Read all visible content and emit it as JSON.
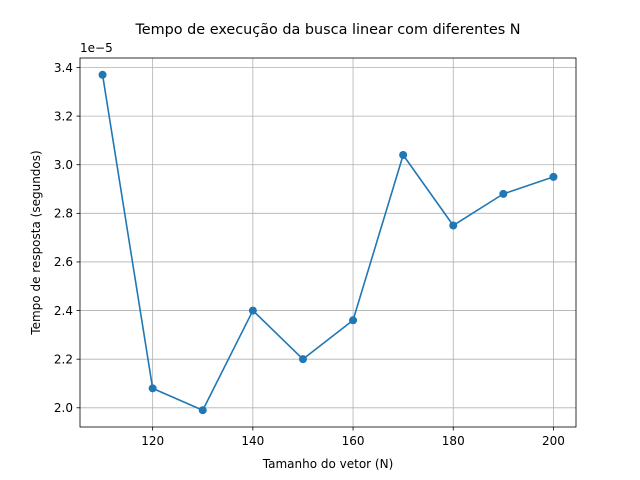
{
  "chart_data": {
    "type": "line",
    "title": "Tempo de execução da busca linear com diferentes N",
    "xlabel": "Tamanho do vetor (N)",
    "ylabel": "Tempo de resposta (segundos)",
    "offset_label": "1e−5",
    "x": [
      110,
      120,
      130,
      140,
      150,
      160,
      170,
      180,
      190,
      200
    ],
    "series": [
      {
        "values": [
          3.37,
          2.08,
          1.99,
          2.4,
          2.2,
          2.36,
          3.04,
          2.75,
          2.88,
          2.95
        ]
      }
    ],
    "xlim": [
      105.5,
      204.5
    ],
    "ylim": [
      1.921,
      3.439
    ],
    "xticks": [
      120,
      140,
      160,
      180,
      200
    ],
    "xtick_labels": [
      "120",
      "140",
      "160",
      "180",
      "200"
    ],
    "yticks": [
      2.0,
      2.2,
      2.4,
      2.6,
      2.8,
      3.0,
      3.2,
      3.4
    ],
    "ytick_labels": [
      "2.0",
      "2.2",
      "2.4",
      "2.6",
      "2.8",
      "3.0",
      "3.2",
      "3.4"
    ],
    "grid": true,
    "marker": "circle",
    "line_color": "#1f77b4"
  }
}
